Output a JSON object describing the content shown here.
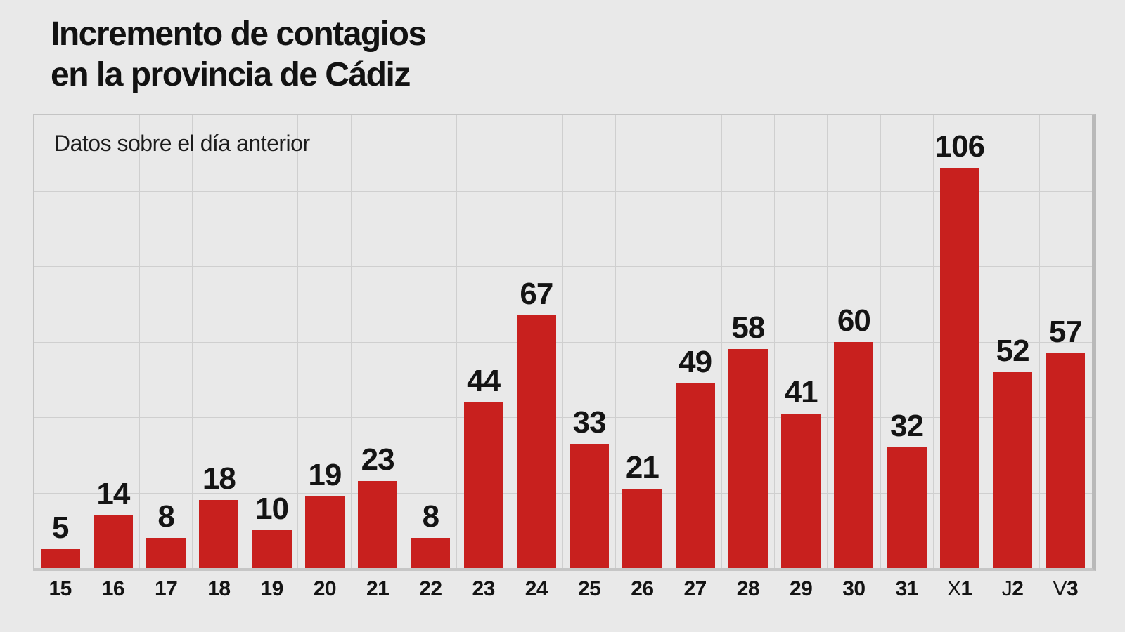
{
  "page": {
    "background_color": "#e9e9e9",
    "grid_color": "#cfcfcf",
    "border_shadow_color": "#b9b9b9",
    "text_color": "#141414"
  },
  "header": {
    "title_line1": "Incremento de contagios",
    "title_line2": "en la provincia de Cádiz"
  },
  "chart_data": {
    "type": "bar",
    "title": "Incremento de contagios en la provincia de Cádiz",
    "subtitle": "Datos sobre el día anterior",
    "categories": [
      "15",
      "16",
      "17",
      "18",
      "19",
      "20",
      "21",
      "22",
      "23",
      "24",
      "25",
      "26",
      "27",
      "28",
      "29",
      "30",
      "31",
      "X1",
      "J2",
      "V3"
    ],
    "values": [
      5,
      14,
      8,
      18,
      10,
      19,
      23,
      8,
      44,
      67,
      33,
      21,
      49,
      58,
      41,
      60,
      32,
      106,
      52,
      57
    ],
    "bar_color": "#c8201e",
    "value_labels": "above bars, bold black",
    "xlabel": "",
    "ylabel": "",
    "ylim": [
      0,
      120
    ],
    "grid": {
      "horizontal_divisions": 6,
      "vertical_divisions": 20,
      "visible": true
    },
    "legend": "none"
  }
}
